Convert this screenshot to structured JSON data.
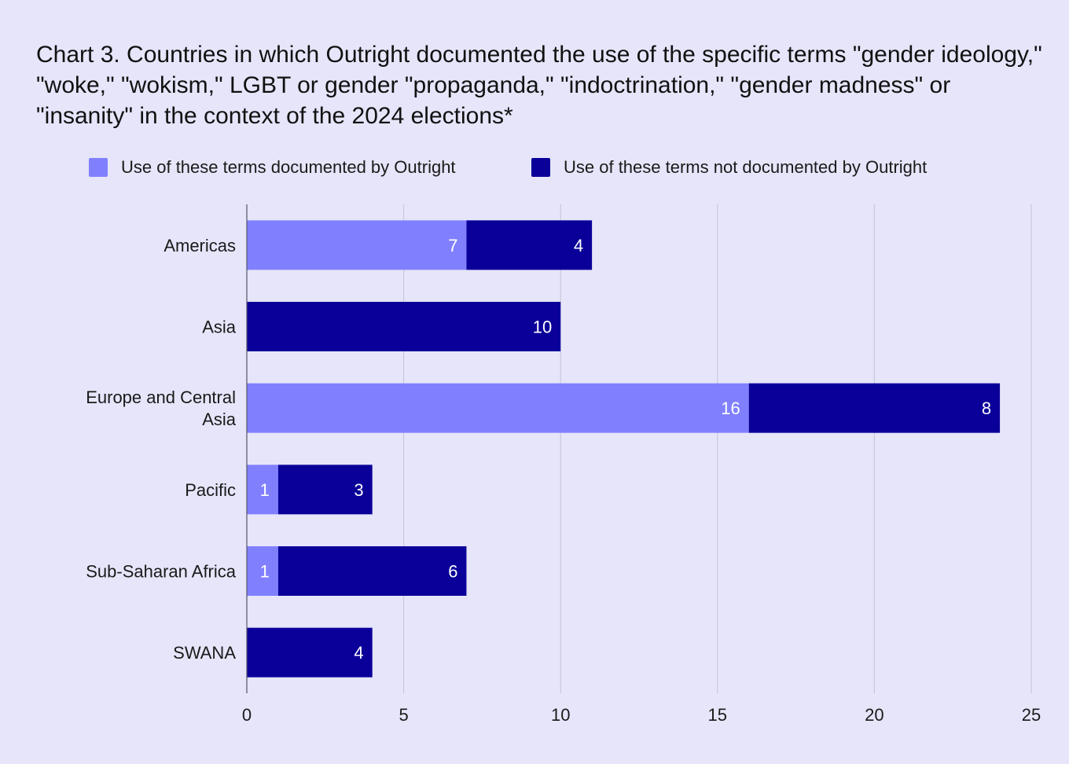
{
  "chart_data": {
    "type": "bar",
    "orientation": "horizontal",
    "stacked": true,
    "title": "Chart 3. Countries in which Outright documented the use of the specific terms \"gender ideology,\" \"woke,\" \"wokism,\" LGBT or gender \"propaganda,\" \"indoctrination,\" \"gender madness\" or \"insanity\" in the context of the 2024 elections*",
    "categories": [
      "Americas",
      "Asia",
      "Europe and Central Asia",
      "Pacific",
      "Sub-Saharan Africa",
      "SWANA"
    ],
    "series": [
      {
        "name": "Use of these terms documented by Outright",
        "values": [
          7,
          0,
          16,
          1,
          1,
          0
        ],
        "color": "#8080ff"
      },
      {
        "name": "Use of these terms not documented by Outright",
        "values": [
          4,
          10,
          8,
          3,
          6,
          4
        ],
        "color": "#0a0099"
      }
    ],
    "xlim": [
      0,
      25
    ],
    "xticks": [
      0,
      5,
      10,
      15,
      20,
      25
    ],
    "grid": true,
    "legend_position": "top"
  }
}
